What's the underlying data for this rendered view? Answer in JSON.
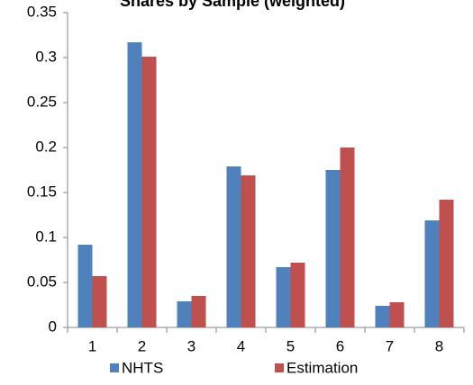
{
  "chart_data": {
    "type": "bar",
    "title": "Shares by Sample (weighted)",
    "categories": [
      "1",
      "2",
      "3",
      "4",
      "5",
      "6",
      "7",
      "8"
    ],
    "series": [
      {
        "name": "NHTS",
        "color": "#4f81bd",
        "values": [
          0.092,
          0.317,
          0.029,
          0.179,
          0.067,
          0.175,
          0.024,
          0.119
        ]
      },
      {
        "name": "Estimation",
        "color": "#c0504d",
        "values": [
          0.057,
          0.301,
          0.035,
          0.169,
          0.072,
          0.2,
          0.028,
          0.142
        ]
      }
    ],
    "ylim": [
      0,
      0.35
    ],
    "yticks": [
      0,
      0.05,
      0.1,
      0.15,
      0.2,
      0.25,
      0.3,
      0.35
    ],
    "grid": false,
    "legend": "bottom"
  }
}
